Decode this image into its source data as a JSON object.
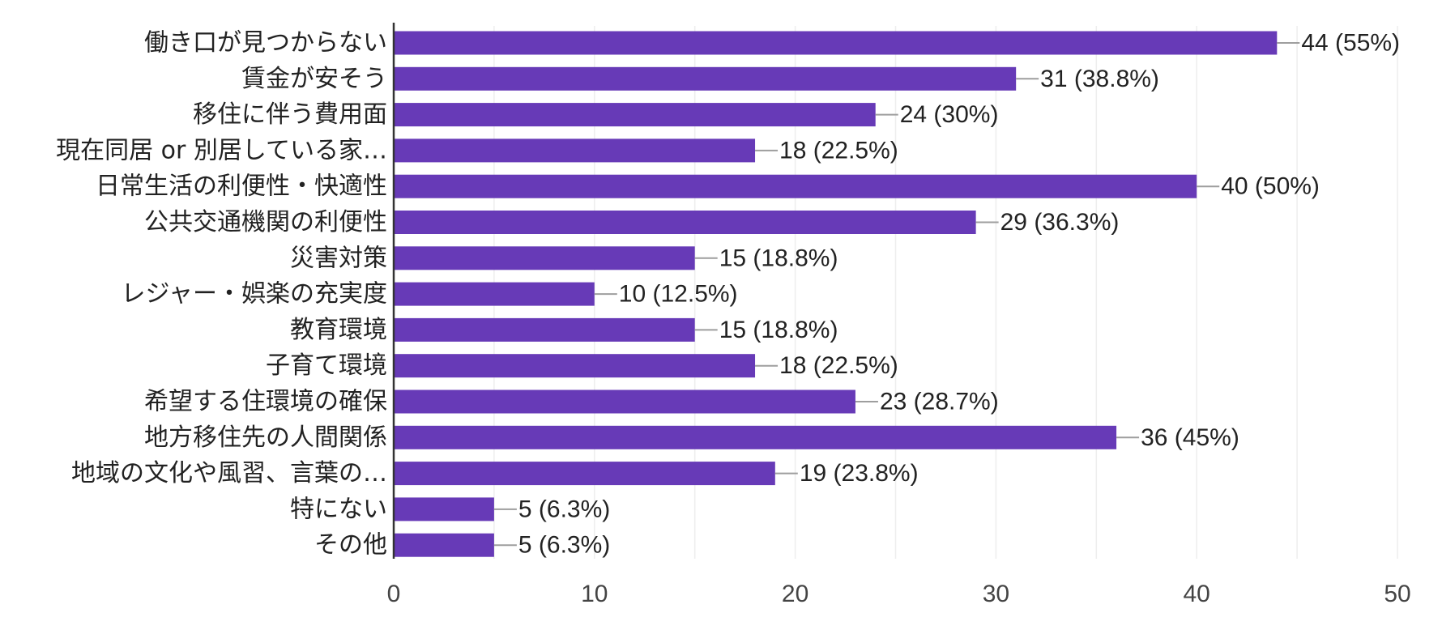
{
  "chart_data": {
    "type": "bar",
    "orientation": "horizontal",
    "categories": [
      "働き口が見つからない",
      "賃金が安そう",
      "移住に伴う費用面",
      "現在同居 or 別居している家…",
      "日常生活の利便性・快適性",
      "公共交通機関の利便性",
      "災害対策",
      "レジャー・娯楽の充実度",
      "教育環境",
      "子育て環境",
      "希望する住環境の確保",
      "地方移住先の人間関係",
      "地域の文化や風習、言葉の…",
      "特にない",
      "その他"
    ],
    "values": [
      44,
      31,
      24,
      18,
      40,
      29,
      15,
      10,
      15,
      18,
      23,
      36,
      19,
      5,
      5
    ],
    "data_labels": [
      "44 (55%)",
      "31 (38.8%)",
      "24 (30%)",
      "18 (22.5%)",
      "40 (50%)",
      "29 (36.3%)",
      "15 (18.8%)",
      "10 (12.5%)",
      "15 (18.8%)",
      "18 (22.5%)",
      "23 (28.7%)",
      "36 (45%)",
      "19 (23.8%)",
      "5 (6.3%)",
      "5 (6.3%)"
    ],
    "xlim": [
      0,
      50
    ],
    "xticks": [
      "0",
      "10",
      "20",
      "30",
      "40",
      "50"
    ],
    "xtick_values": [
      0,
      10,
      20,
      30,
      40,
      50
    ],
    "grid": true,
    "bar_color": "#673ab7",
    "leader_color": "#9e9e9e",
    "grid_color": "#eeeeee",
    "axis_color": "#333333"
  }
}
